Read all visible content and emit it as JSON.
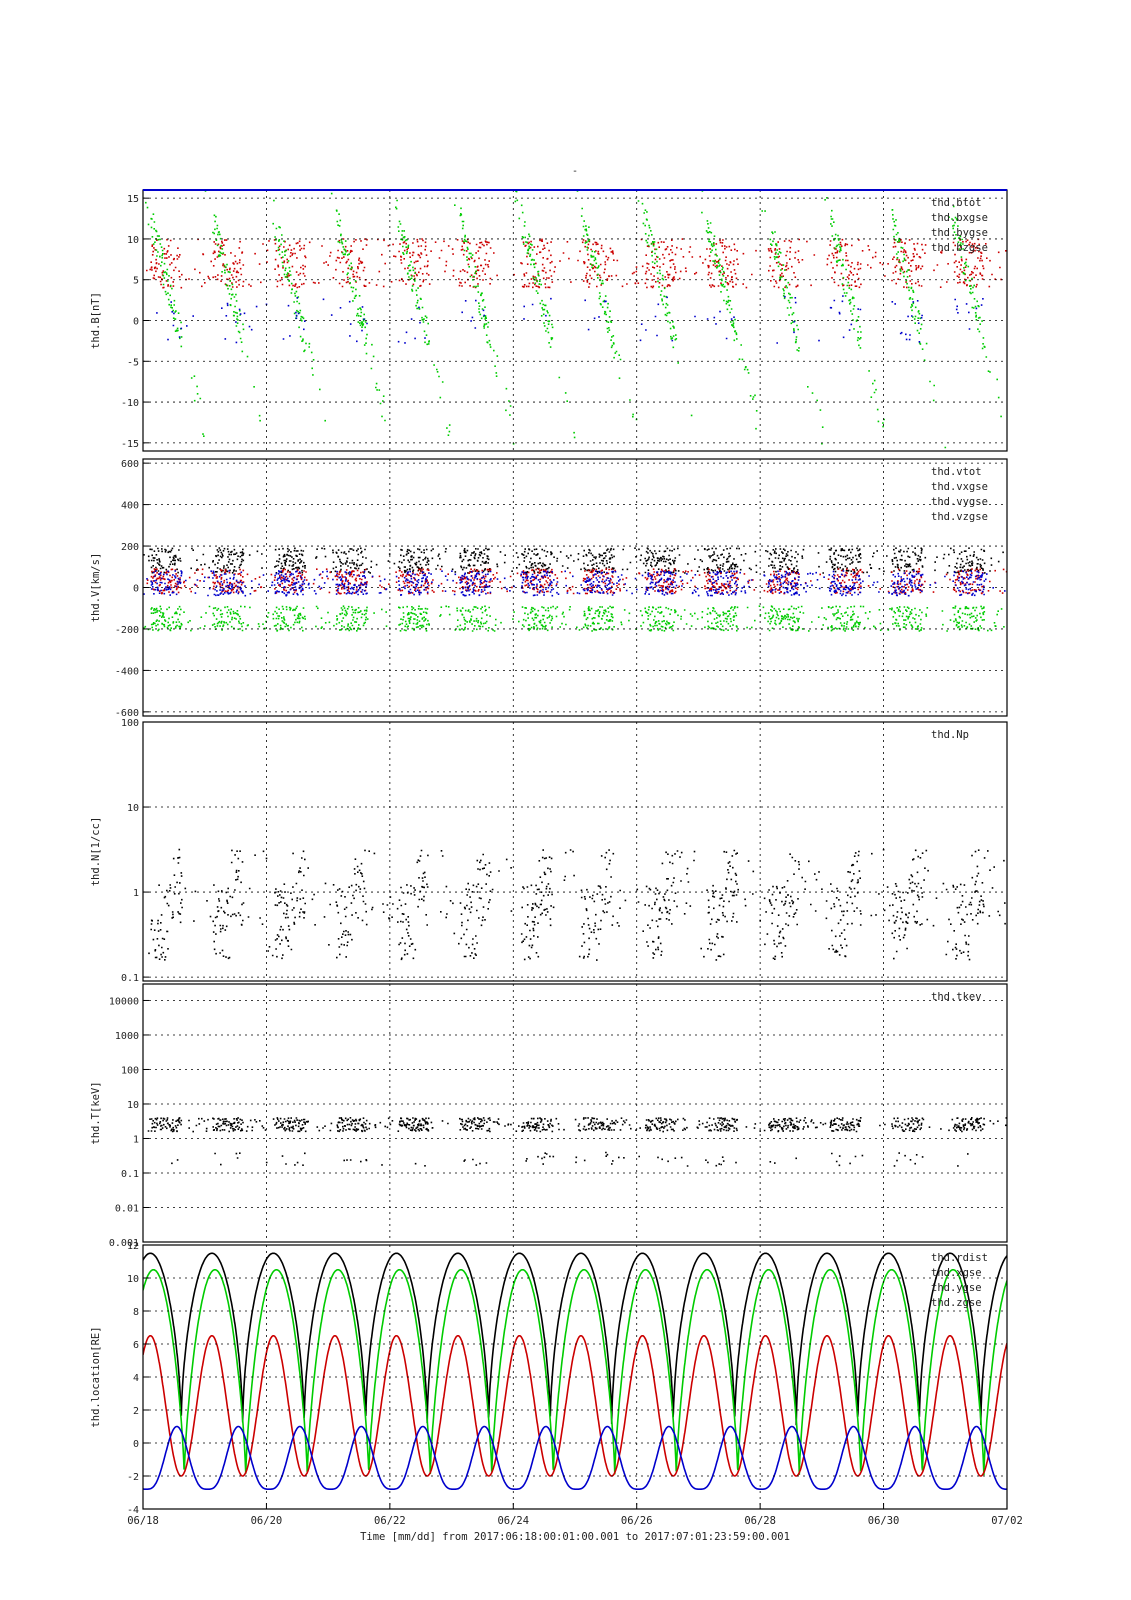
{
  "page_title": "-",
  "colors": {
    "black": "#000000",
    "red": "#cc0000",
    "green": "#00cc00",
    "blue": "#0000cc",
    "grid": "#000000"
  },
  "chart_data": [
    {
      "type": "scatter",
      "panel": "B",
      "ylabel": "thd.B[nT]",
      "ylim": [
        -16,
        16
      ],
      "yscale": "linear",
      "yticks": [
        -15,
        -10,
        -5,
        0,
        5,
        10,
        15
      ],
      "grid": true,
      "legend_placement": "top-right",
      "series": [
        {
          "name": "thd.btot",
          "color": "#000000"
        },
        {
          "name": "thd.bxgse",
          "color": "#cc0000"
        },
        {
          "name": "thd.bygse",
          "color": "#00cc00"
        },
        {
          "name": "thd.bzgse",
          "color": "#0000cc"
        }
      ]
    },
    {
      "type": "scatter",
      "panel": "V",
      "ylabel": "thd.V[km/s]",
      "ylim": [
        -620,
        620
      ],
      "yscale": "linear",
      "yticks": [
        -600,
        -400,
        -200,
        0,
        200,
        400,
        600
      ],
      "grid": true,
      "legend_placement": "top-right",
      "series": [
        {
          "name": "thd.vtot",
          "color": "#000000"
        },
        {
          "name": "thd.vxgse",
          "color": "#cc0000"
        },
        {
          "name": "thd.vygse",
          "color": "#00cc00"
        },
        {
          "name": "thd.vzgse",
          "color": "#0000cc"
        }
      ]
    },
    {
      "type": "scatter",
      "panel": "N",
      "ylabel": "thd.N[1/cc]",
      "ylim": [
        0.09,
        100
      ],
      "yscale": "log",
      "yticks": [
        0.1,
        1,
        10,
        100
      ],
      "yticklabels": [
        "0.1",
        "1",
        "10",
        "100"
      ],
      "grid": true,
      "legend_placement": "top-right",
      "series": [
        {
          "name": "thd.Np",
          "color": "#000000"
        }
      ]
    },
    {
      "type": "scatter",
      "panel": "T",
      "ylabel": "thd.T[keV]",
      "ylim": [
        0.001,
        30000
      ],
      "yscale": "log",
      "yticks": [
        0.001,
        0.01,
        0.1,
        1,
        10,
        100,
        1000,
        10000
      ],
      "yticklabels": [
        "0.001",
        "0.01",
        "0.1",
        "1",
        "10",
        "100",
        "1000",
        "10000"
      ],
      "grid": true,
      "legend_placement": "top-right",
      "series": [
        {
          "name": "thd.tkev",
          "color": "#000000"
        }
      ]
    },
    {
      "type": "line",
      "panel": "location",
      "ylabel": "thd.location[RE]",
      "ylim": [
        -4,
        12
      ],
      "yscale": "linear",
      "yticks": [
        -4,
        -2,
        0,
        2,
        4,
        6,
        8,
        10,
        12
      ],
      "grid": true,
      "legend_placement": "top-right",
      "orbit_period_days": 0.9967,
      "series": [
        {
          "name": "thd.rdist",
          "color": "#000000",
          "range": [
            1.0,
            11.5
          ]
        },
        {
          "name": "thd.xgse",
          "color": "#00cc00",
          "range": [
            -2.0,
            10.5
          ]
        },
        {
          "name": "thd.ygse",
          "color": "#cc0000",
          "range": [
            -2.0,
            6.5
          ]
        },
        {
          "name": "thd.zgse",
          "color": "#0000cc",
          "range": [
            -2.8,
            1.0
          ]
        }
      ]
    }
  ],
  "x_axis": {
    "xlim": [
      "06/18",
      "07/02"
    ],
    "ticks": [
      "06/18",
      "06/20",
      "06/22",
      "06/24",
      "06/26",
      "06/28",
      "06/30",
      "07/02"
    ],
    "xlabel": "Time [mm/dd]  from 2017:06:18:00:01:00.001  to  2017:07:01:23:59:00.001"
  }
}
